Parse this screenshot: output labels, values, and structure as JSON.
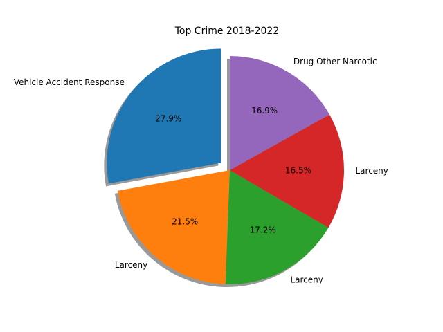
{
  "chart_data": {
    "type": "pie",
    "title": "Top Crime 2018-2022",
    "slices": [
      {
        "label": "Vehicle Accident Response",
        "value": 27.9,
        "pct_text": "27.9%",
        "color": "#1f77b4",
        "exploded": true
      },
      {
        "label": "Larceny",
        "value": 21.5,
        "pct_text": "21.5%",
        "color": "#ff7f0e",
        "exploded": false
      },
      {
        "label": "Larceny",
        "value": 17.2,
        "pct_text": "17.2%",
        "color": "#2ca02c",
        "exploded": false
      },
      {
        "label": "Larceny",
        "value": 16.5,
        "pct_text": "16.5%",
        "color": "#d62728",
        "exploded": false
      },
      {
        "label": "Drug Other Narcotic",
        "value": 16.9,
        "pct_text": "16.9%",
        "color": "#9467bd",
        "exploded": false
      }
    ],
    "start_angle_deg": 90,
    "direction": "counterclockwise",
    "shadow": true
  }
}
